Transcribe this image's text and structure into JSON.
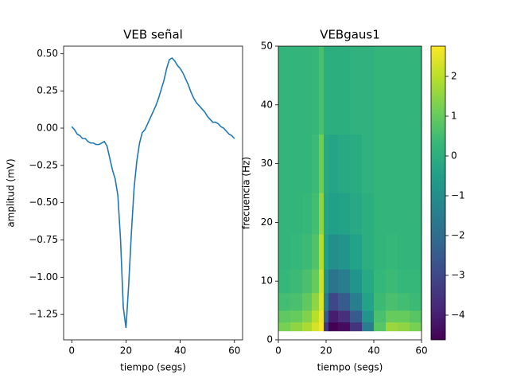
{
  "chart_data": [
    {
      "type": "line",
      "title": "VEB señal",
      "xlabel": "tiempo (segs)",
      "ylabel": "amplitud (mV)",
      "x": [
        0,
        1,
        2,
        3,
        4,
        5,
        6,
        7,
        8,
        9,
        10,
        11,
        12,
        13,
        14,
        15,
        16,
        17,
        18,
        19,
        20,
        21,
        22,
        23,
        24,
        25,
        26,
        27,
        28,
        29,
        30,
        31,
        32,
        33,
        34,
        35,
        36,
        37,
        38,
        39,
        40,
        41,
        42,
        43,
        44,
        45,
        46,
        47,
        48,
        49,
        50,
        51,
        52,
        53,
        54,
        55,
        56,
        57,
        58,
        59,
        60
      ],
      "series": [
        {
          "color": "#1f77b4",
          "values": [
            0.01,
            -0.01,
            -0.04,
            -0.05,
            -0.07,
            -0.07,
            -0.09,
            -0.1,
            -0.1,
            -0.11,
            -0.11,
            -0.1,
            -0.09,
            -0.12,
            -0.2,
            -0.28,
            -0.34,
            -0.45,
            -0.75,
            -1.2,
            -1.34,
            -1.05,
            -0.7,
            -0.4,
            -0.22,
            -0.1,
            -0.03,
            -0.01,
            0.03,
            0.07,
            0.11,
            0.15,
            0.2,
            0.26,
            0.32,
            0.4,
            0.46,
            0.47,
            0.45,
            0.42,
            0.4,
            0.37,
            0.33,
            0.29,
            0.24,
            0.2,
            0.17,
            0.15,
            0.13,
            0.11,
            0.08,
            0.06,
            0.04,
            0.04,
            0.03,
            0.01,
            0.0,
            -0.02,
            -0.04,
            -0.05,
            -0.07
          ]
        }
      ],
      "xlim": [
        -3,
        63
      ],
      "xticks": [
        0,
        20,
        40,
        60
      ],
      "ylim": [
        -1.42,
        0.55
      ],
      "yticks": [
        {
          "value": 0.5,
          "label": "0.50"
        },
        {
          "value": 0.25,
          "label": "0.25"
        },
        {
          "value": 0,
          "label": "0.00"
        },
        {
          "value": -0.25,
          "label": "−0.25"
        },
        {
          "value": -0.5,
          "label": "−0.50"
        },
        {
          "value": -0.75,
          "label": "−0.75"
        },
        {
          "value": -1,
          "label": "−1.00"
        },
        {
          "value": -1.25,
          "label": "−1.25"
        }
      ]
    },
    {
      "type": "heatmap",
      "title": "VEBgaus1",
      "xlabel": "tiempo (segs)",
      "ylabel": "frecuencia (Hz)",
      "cmap": "viridis",
      "xbins": [
        0,
        5,
        10,
        14,
        17,
        19,
        21,
        25,
        30,
        35,
        40,
        45,
        50,
        55,
        60
      ],
      "ybins": [
        1.5,
        3,
        5,
        8,
        12,
        18,
        25,
        35,
        50
      ],
      "z": [
        [
          1.2,
          1.5,
          1.8,
          2.3,
          2.7,
          -3.5,
          -4.6,
          -4.4,
          -3.5,
          -1.5,
          0.8,
          1.6,
          1.5,
          1.2
        ],
        [
          0.9,
          1.0,
          1.3,
          2.0,
          2.6,
          -2.5,
          -4.0,
          -3.6,
          -2.5,
          -0.8,
          0.6,
          1.0,
          1.0,
          0.8
        ],
        [
          0.5,
          0.6,
          0.9,
          1.5,
          2.4,
          -1.5,
          -3.0,
          -2.5,
          -1.5,
          -0.4,
          0.4,
          0.6,
          0.5,
          0.4
        ],
        [
          0.3,
          0.4,
          0.6,
          1.0,
          2.2,
          -0.9,
          -1.8,
          -1.5,
          -0.8,
          -0.2,
          0.3,
          0.4,
          0.3,
          0.3
        ],
        [
          0.2,
          0.3,
          0.4,
          0.7,
          1.9,
          -0.5,
          -1.0,
          -0.8,
          -0.4,
          0.0,
          0.2,
          0.3,
          0.2,
          0.2
        ],
        [
          0.2,
          0.2,
          0.3,
          0.5,
          1.5,
          -0.3,
          -0.5,
          -0.4,
          -0.2,
          0.0,
          0.2,
          0.2,
          0.2,
          0.2
        ],
        [
          0.2,
          0.2,
          0.2,
          0.4,
          1.1,
          -0.2,
          -0.3,
          -0.2,
          -0.1,
          0.1,
          0.2,
          0.2,
          0.2,
          0.2
        ],
        [
          0.2,
          0.2,
          0.2,
          0.3,
          0.6,
          0.0,
          0.0,
          0.0,
          0.1,
          0.1,
          0.2,
          0.2,
          0.2,
          0.2
        ]
      ],
      "xlim": [
        0,
        60
      ],
      "xticks": [
        0,
        20,
        40,
        60
      ],
      "ylim": [
        0,
        50
      ],
      "yticks": [
        0,
        10,
        20,
        30,
        40,
        50
      ],
      "clim": [
        -4.62,
        2.76
      ],
      "cticks": [
        {
          "value": 2,
          "label": "2"
        },
        {
          "value": 1,
          "label": "1"
        },
        {
          "value": 0,
          "label": "0"
        },
        {
          "value": -1,
          "label": "−1"
        },
        {
          "value": -2,
          "label": "−2"
        },
        {
          "value": -3,
          "label": "−3"
        },
        {
          "value": -4,
          "label": "−4"
        }
      ]
    }
  ]
}
